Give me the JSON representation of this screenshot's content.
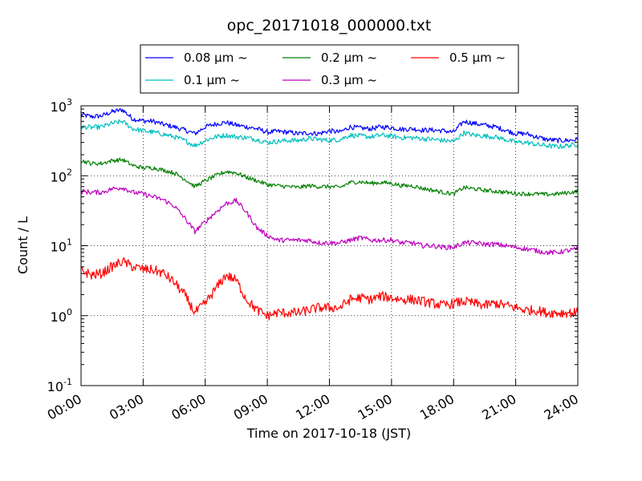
{
  "chart_data": {
    "type": "line",
    "title": "opc_20171018_000000.txt",
    "xlabel": "Time on 2017-10-18 (JST)",
    "ylabel": "Count / L",
    "yscale": "log",
    "xlim": [
      0,
      24
    ],
    "ylim": [
      0.1,
      1000
    ],
    "grid": true,
    "legend_position": "top-center",
    "x_tick_labels": [
      "00:00",
      "03:00",
      "06:00",
      "09:00",
      "12:00",
      "15:00",
      "18:00",
      "21:00",
      "24:00"
    ],
    "x_tick_values": [
      0,
      3,
      6,
      9,
      12,
      15,
      18,
      21,
      24
    ],
    "y_tick_values": [
      0.1,
      1,
      10,
      100,
      1000
    ],
    "y_tick_bases": [
      "10",
      "10",
      "10",
      "10",
      "10"
    ],
    "y_tick_exponents": [
      "-1",
      "0",
      "1",
      "2",
      "3"
    ],
    "x": [
      0,
      0.5,
      1,
      1.5,
      2,
      2.5,
      3,
      3.5,
      4,
      4.5,
      5,
      5.5,
      6,
      6.5,
      7,
      7.5,
      8,
      8.5,
      9,
      9.5,
      10,
      10.5,
      11,
      11.5,
      12,
      12.5,
      13,
      13.5,
      14,
      14.5,
      15,
      15.5,
      16,
      16.5,
      17,
      17.5,
      18,
      18.5,
      19,
      19.5,
      20,
      20.5,
      21,
      21.5,
      22,
      22.5,
      23,
      23.5,
      24
    ],
    "series": [
      {
        "name": "0.08 μm ~",
        "color": "#0000ff",
        "values": [
          750,
          700,
          720,
          820,
          880,
          650,
          610,
          600,
          540,
          500,
          450,
          400,
          500,
          550,
          580,
          530,
          500,
          470,
          420,
          430,
          420,
          400,
          410,
          400,
          440,
          420,
          500,
          480,
          470,
          500,
          490,
          460,
          470,
          450,
          450,
          440,
          420,
          600,
          560,
          530,
          500,
          450,
          400,
          400,
          360,
          330,
          320,
          320,
          330
        ]
      },
      {
        "name": "0.1 μm ~",
        "color": "#00bfbf",
        "values": [
          500,
          490,
          500,
          560,
          600,
          470,
          440,
          420,
          390,
          360,
          320,
          270,
          320,
          360,
          380,
          360,
          350,
          330,
          300,
          310,
          320,
          320,
          340,
          330,
          320,
          330,
          380,
          370,
          360,
          380,
          370,
          350,
          350,
          340,
          330,
          320,
          310,
          410,
          380,
          370,
          360,
          330,
          300,
          300,
          280,
          270,
          260,
          270,
          280
        ]
      },
      {
        "name": "0.2 μm ~",
        "color": "#008000",
        "values": [
          165,
          150,
          150,
          165,
          170,
          140,
          130,
          130,
          120,
          110,
          90,
          70,
          85,
          100,
          115,
          110,
          95,
          85,
          75,
          72,
          70,
          68,
          72,
          70,
          70,
          68,
          80,
          82,
          78,
          80,
          78,
          72,
          72,
          66,
          62,
          58,
          55,
          68,
          65,
          62,
          60,
          58,
          56,
          55,
          55,
          54,
          55,
          57,
          60
        ]
      },
      {
        "name": "0.3 μm ~",
        "color": "#bf00bf",
        "values": [
          60,
          58,
          58,
          65,
          68,
          58,
          55,
          50,
          45,
          37,
          25,
          16,
          22,
          30,
          40,
          44,
          30,
          18,
          14,
          12,
          12,
          12,
          12,
          11,
          11,
          11,
          12,
          13,
          12,
          12,
          12,
          11,
          11,
          10,
          10,
          9.5,
          9.5,
          11,
          11,
          10.5,
          10.5,
          10,
          9.5,
          9,
          8.5,
          8,
          8,
          8.5,
          9
        ]
      },
      {
        "name": "0.5 μm ~",
        "color": "#ff0000",
        "values": [
          4.5,
          3.8,
          4.0,
          5.0,
          6.0,
          5.0,
          4.6,
          4.5,
          4.0,
          3.0,
          2.0,
          1.1,
          1.5,
          2.4,
          3.8,
          3.2,
          1.7,
          1.2,
          1.0,
          1.1,
          1.1,
          1.1,
          1.2,
          1.3,
          1.3,
          1.3,
          1.7,
          1.8,
          1.7,
          1.9,
          1.8,
          1.7,
          1.7,
          1.6,
          1.5,
          1.4,
          1.5,
          1.6,
          1.5,
          1.4,
          1.5,
          1.4,
          1.3,
          1.2,
          1.2,
          1.1,
          1.1,
          1.1,
          1.1
        ]
      }
    ]
  }
}
